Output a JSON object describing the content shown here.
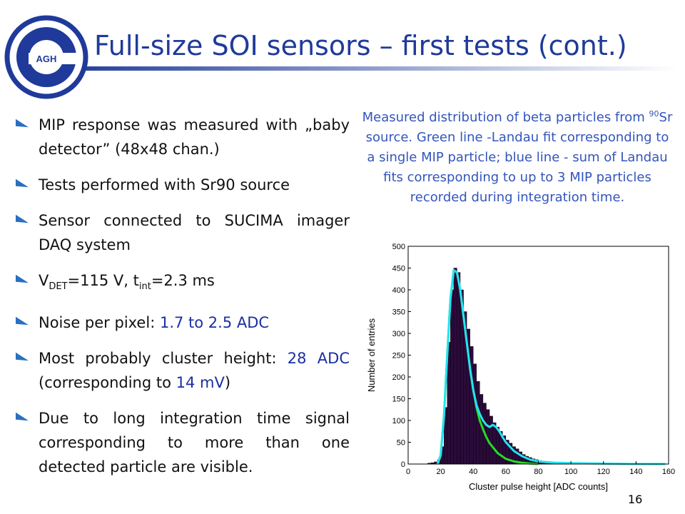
{
  "header": {
    "title": "Full-size SOI sensors – first tests (cont.)",
    "logo_text": "AGH"
  },
  "bullets": [
    [
      {
        "text": "MIP response was measured with „baby detector” (48x48 chan.)"
      }
    ],
    [
      {
        "text": "Tests performed with Sr90 source"
      }
    ],
    [
      {
        "text": "Sensor connected to SUCIMA imager DAQ system"
      }
    ],
    [
      {
        "text": "V"
      },
      {
        "text": "DET",
        "sub": true
      },
      {
        "text": "=115 V, t"
      },
      {
        "text": "int",
        "sub": true
      },
      {
        "text": "=2.3 ms"
      }
    ],
    [
      {
        "text": "Noise per pixel: "
      },
      {
        "text": "1.7 to 2.5 ADC",
        "blue": true
      }
    ],
    [
      {
        "text": "Most probably cluster height: "
      },
      {
        "text": "28 ADC",
        "blue": true
      },
      {
        "text": " (corresponding to "
      },
      {
        "text": "14 mV",
        "blue": true
      },
      {
        "text": ")"
      }
    ],
    [
      {
        "text": "Due to long integration time signal corresponding to more than one detected particle are visible."
      }
    ]
  ],
  "caption": [
    {
      "text": "Measured distribution of beta particles from "
    },
    {
      "text": "90",
      "sup": true
    },
    {
      "text": "Sr source. Green line -Landau fit corresponding to a single MIP particle; blue line - sum of Landau fits corresponding to up to 3 MIP particles recorded during integration time."
    }
  ],
  "chart_data": {
    "type": "histogram",
    "x_label": "Cluster pulse height [ADC counts]",
    "y_label": "Number of entries",
    "bins": [
      10,
      12,
      14,
      16,
      18,
      20,
      22,
      24,
      26,
      28,
      30,
      32,
      34,
      36,
      38,
      40,
      42,
      44,
      46,
      48,
      50,
      52,
      54,
      56,
      58,
      60,
      62,
      64,
      66,
      68,
      70,
      72,
      74,
      76,
      78,
      80,
      82,
      84,
      86,
      88,
      90,
      92,
      94,
      96,
      98,
      100
    ],
    "counts": [
      0,
      2,
      3,
      5,
      10,
      40,
      130,
      280,
      400,
      450,
      440,
      400,
      350,
      310,
      270,
      230,
      190,
      160,
      140,
      125,
      110,
      95,
      85,
      75,
      65,
      55,
      48,
      40,
      35,
      28,
      22,
      18,
      15,
      12,
      10,
      8,
      6,
      5,
      4,
      3,
      3,
      2,
      2,
      1,
      1
    ],
    "color": "#2b0b3b",
    "lines": [
      {
        "color": "#22dd22",
        "x": [
          18,
          20,
          22,
          24,
          26,
          28,
          30,
          32,
          34,
          36,
          38,
          40,
          42,
          44,
          46,
          48,
          50,
          55,
          60,
          65,
          70,
          75,
          80
        ],
        "y": [
          0,
          20,
          110,
          250,
          380,
          445,
          440,
          400,
          340,
          280,
          220,
          170,
          130,
          100,
          80,
          62,
          48,
          25,
          12,
          6,
          3,
          1,
          0
        ]
      },
      {
        "color": "#22e4f2",
        "x": [
          18,
          20,
          22,
          24,
          26,
          28,
          30,
          32,
          34,
          36,
          38,
          40,
          42,
          44,
          46,
          48,
          50,
          52,
          54,
          56,
          58,
          60,
          65,
          70,
          75,
          80,
          90,
          100,
          120,
          140,
          158
        ],
        "y": [
          0,
          20,
          110,
          250,
          380,
          445,
          440,
          400,
          340,
          280,
          220,
          170,
          135,
          115,
          100,
          90,
          85,
          90,
          85,
          75,
          62,
          50,
          30,
          18,
          10,
          6,
          3,
          2,
          1,
          0,
          0
        ]
      }
    ],
    "xlim": [
      0,
      160
    ],
    "ylim": [
      0,
      500
    ],
    "xticks": [
      0,
      20,
      40,
      60,
      80,
      100,
      120,
      140,
      160
    ],
    "yticks": [
      0,
      50,
      100,
      150,
      200,
      250,
      300,
      350,
      400,
      450,
      500
    ]
  },
  "page_number": "16"
}
